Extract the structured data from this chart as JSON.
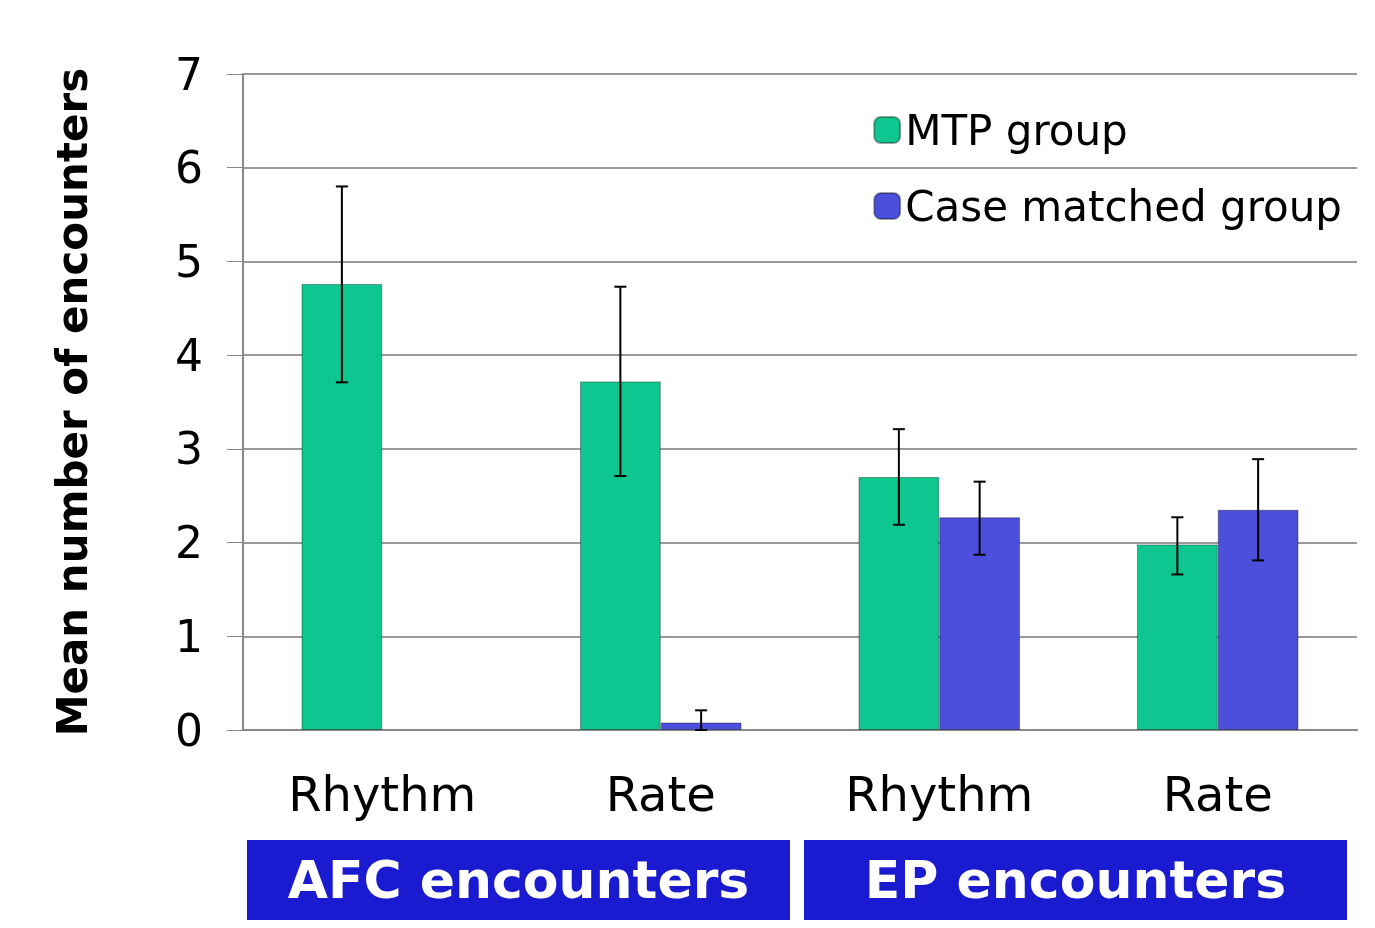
{
  "chart_data": {
    "type": "bar",
    "ylabel": "Mean number of encounters",
    "categories": [
      "Rhythm",
      "Rate",
      "Rhythm",
      "Rate"
    ],
    "series": [
      {
        "name": "MTP group",
        "color": "#0dc690",
        "values": [
          4.76,
          3.72,
          2.7,
          1.98
        ],
        "errors": [
          [
            3.71,
            5.8
          ],
          [
            2.71,
            4.73
          ],
          [
            2.19,
            3.21
          ],
          [
            1.66,
            2.27
          ]
        ]
      },
      {
        "name": "Case matched group",
        "color": "#4b4fdb",
        "values": [
          null,
          0.08,
          2.27,
          2.35
        ],
        "errors": [
          null,
          [
            0,
            0.21
          ],
          [
            1.87,
            2.65
          ],
          [
            1.81,
            2.89
          ]
        ]
      }
    ],
    "ylim": [
      0,
      7
    ],
    "yticks": [
      0,
      1,
      2,
      3,
      4,
      5,
      6,
      7
    ],
    "grid": "y",
    "legend": "top right",
    "annotations": [
      "AFC encounters",
      "EP encounters"
    ]
  }
}
